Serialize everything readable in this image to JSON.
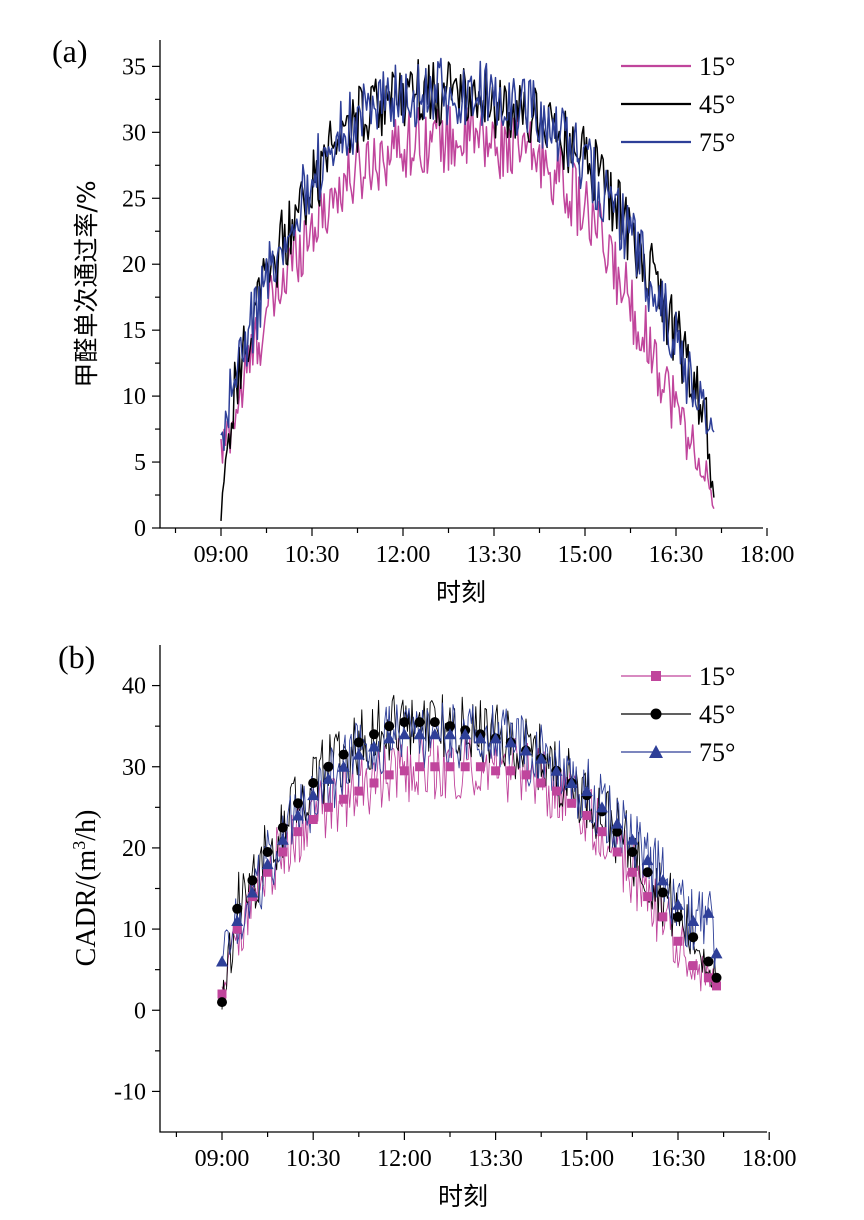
{
  "chart_data": [
    {
      "type": "line",
      "panel_label": "(a)",
      "xlabel": "时刻",
      "ylabel": "甲醛单次通过率/%",
      "x_ticks": [
        "09:00",
        "10:30",
        "12:00",
        "13:30",
        "15:00",
        "16:30",
        "18:00"
      ],
      "xlim": [
        "08:00",
        "18:00"
      ],
      "ylim": [
        0,
        37
      ],
      "y_ticks": [
        0,
        5,
        10,
        15,
        20,
        25,
        30,
        35
      ],
      "grid": false,
      "legend_position": "top-right",
      "series": [
        {
          "name": "15°",
          "color": "#c0459c",
          "x": [
            "09:00",
            "09:15",
            "09:30",
            "09:45",
            "10:00",
            "10:15",
            "10:30",
            "10:45",
            "11:00",
            "11:15",
            "11:30",
            "11:45",
            "12:00",
            "12:15",
            "12:30",
            "12:45",
            "13:00",
            "13:15",
            "13:30",
            "13:45",
            "14:00",
            "14:15",
            "14:30",
            "14:45",
            "15:00",
            "15:15",
            "15:30",
            "15:45",
            "16:00",
            "16:15",
            "16:30",
            "16:45",
            "17:00",
            "17:08"
          ],
          "values": [
            5.5,
            9,
            13,
            16,
            18.5,
            21,
            23,
            24.5,
            26,
            27,
            28,
            28.5,
            29,
            29.5,
            29.5,
            29.5,
            29.5,
            29.5,
            29,
            29,
            28.5,
            28,
            27,
            25.5,
            24,
            22,
            19.5,
            17,
            14.5,
            12,
            9,
            6.5,
            4,
            1
          ]
        },
        {
          "name": "45°",
          "color": "#000000",
          "x": [
            "09:00",
            "09:15",
            "09:30",
            "09:45",
            "10:00",
            "10:15",
            "10:30",
            "10:45",
            "11:00",
            "11:15",
            "11:30",
            "11:45",
            "12:00",
            "12:15",
            "12:30",
            "12:45",
            "13:00",
            "13:15",
            "13:30",
            "13:45",
            "14:00",
            "14:15",
            "14:30",
            "14:45",
            "15:00",
            "15:15",
            "15:30",
            "15:45",
            "16:00",
            "16:15",
            "16:30",
            "16:45",
            "17:00",
            "17:08"
          ],
          "values": [
            1,
            11,
            15.5,
            19,
            21.5,
            24,
            26,
            28,
            29.5,
            31,
            32,
            32.5,
            33,
            33,
            33,
            33,
            32.5,
            32.5,
            32,
            32,
            31.5,
            31,
            30,
            29,
            28,
            26.5,
            24.5,
            22.5,
            20,
            17.5,
            14.5,
            11.5,
            8,
            1.5
          ]
        },
        {
          "name": "75°",
          "color": "#2e3f98",
          "x": [
            "09:00",
            "09:15",
            "09:30",
            "09:45",
            "10:00",
            "10:15",
            "10:30",
            "10:45",
            "11:00",
            "11:15",
            "11:30",
            "11:45",
            "12:00",
            "12:15",
            "12:30",
            "12:45",
            "13:00",
            "13:15",
            "13:30",
            "13:45",
            "14:00",
            "14:15",
            "14:30",
            "14:45",
            "15:00",
            "15:15",
            "15:30",
            "15:45",
            "16:00",
            "16:15",
            "16:30",
            "16:45",
            "17:00",
            "17:08"
          ],
          "values": [
            7,
            11.5,
            15.5,
            19,
            22,
            24.5,
            26.5,
            28.5,
            30,
            31,
            32,
            32.5,
            33,
            33,
            33,
            33,
            33,
            33,
            32.5,
            32.5,
            32,
            31,
            30,
            29,
            27.5,
            26,
            24,
            22,
            19.5,
            17,
            14,
            11,
            8,
            6
          ]
        }
      ]
    },
    {
      "type": "line",
      "panel_label": "(b)",
      "xlabel": "时刻",
      "ylabel": "CADR/(m³/h)",
      "ylabel_parts": [
        "CADR/(m",
        "3",
        "/h)"
      ],
      "x_ticks": [
        "09:00",
        "10:30",
        "12:00",
        "13:30",
        "15:00",
        "16:30",
        "18:00"
      ],
      "xlim": [
        "08:00",
        "18:00"
      ],
      "ylim": [
        -15,
        45
      ],
      "y_ticks": [
        -10,
        0,
        10,
        20,
        30,
        40
      ],
      "grid": false,
      "legend_position": "top-right",
      "series": [
        {
          "name": "15°",
          "color": "#c0459c",
          "marker": "square",
          "x": [
            "09:00",
            "09:15",
            "09:30",
            "09:45",
            "10:00",
            "10:15",
            "10:30",
            "10:45",
            "11:00",
            "11:15",
            "11:30",
            "11:45",
            "12:00",
            "12:15",
            "12:30",
            "12:45",
            "13:00",
            "13:15",
            "13:30",
            "13:45",
            "14:00",
            "14:15",
            "14:30",
            "14:45",
            "15:00",
            "15:15",
            "15:30",
            "15:45",
            "16:00",
            "16:15",
            "16:30",
            "16:45",
            "17:00",
            "17:08"
          ],
          "values": [
            2,
            10,
            14,
            17,
            19.5,
            22,
            23.5,
            25,
            26,
            27,
            28,
            29,
            29.5,
            30,
            30,
            30,
            30,
            30,
            29.5,
            29.5,
            29,
            28,
            27,
            25.5,
            24,
            22,
            19.5,
            17,
            14,
            11.5,
            8.5,
            5.5,
            4,
            3
          ]
        },
        {
          "name": "45°",
          "color": "#000000",
          "marker": "circle",
          "x": [
            "09:00",
            "09:15",
            "09:30",
            "09:45",
            "10:00",
            "10:15",
            "10:30",
            "10:45",
            "11:00",
            "11:15",
            "11:30",
            "11:45",
            "12:00",
            "12:15",
            "12:30",
            "12:45",
            "13:00",
            "13:15",
            "13:30",
            "13:45",
            "14:00",
            "14:15",
            "14:30",
            "14:45",
            "15:00",
            "15:15",
            "15:30",
            "15:45",
            "16:00",
            "16:15",
            "16:30",
            "16:45",
            "17:00",
            "17:08"
          ],
          "values": [
            1,
            12.5,
            16,
            19.5,
            22.5,
            25.5,
            28,
            30,
            31.5,
            33,
            34,
            35,
            35.5,
            35.5,
            35.5,
            35,
            34.5,
            34,
            33.5,
            33,
            32,
            31,
            29.5,
            28,
            26.5,
            24.5,
            22,
            19.5,
            17,
            14.5,
            11.5,
            9,
            6,
            4
          ]
        },
        {
          "name": "75°",
          "color": "#2e3f98",
          "marker": "triangle",
          "x": [
            "09:00",
            "09:15",
            "09:30",
            "09:45",
            "10:00",
            "10:15",
            "10:30",
            "10:45",
            "11:00",
            "11:15",
            "11:30",
            "11:45",
            "12:00",
            "12:15",
            "12:30",
            "12:45",
            "13:00",
            "13:15",
            "13:30",
            "13:45",
            "14:00",
            "14:15",
            "14:30",
            "14:45",
            "15:00",
            "15:15",
            "15:30",
            "15:45",
            "16:00",
            "16:15",
            "16:30",
            "16:45",
            "17:00",
            "17:08"
          ],
          "values": [
            6,
            11,
            14.5,
            18,
            21,
            24,
            26.5,
            28.5,
            30,
            31.5,
            32.5,
            33.5,
            34,
            34,
            34,
            34,
            34,
            33.5,
            33.5,
            33,
            32,
            31,
            29.5,
            28,
            27,
            25,
            23,
            21,
            18.5,
            16,
            13,
            11,
            12,
            7
          ]
        }
      ]
    }
  ]
}
